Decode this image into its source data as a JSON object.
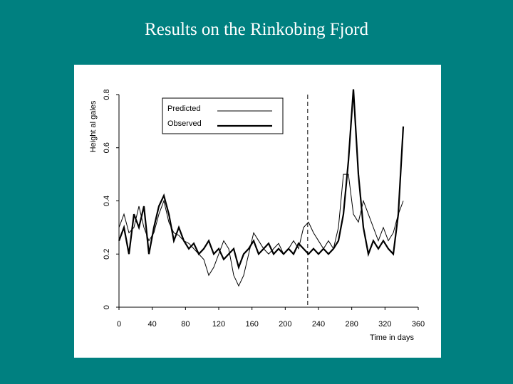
{
  "chart_data": {
    "type": "line",
    "title": "Results on the Rinkobing Fjord",
    "x_label": "Time in days",
    "y_label": "Height al gales",
    "x": [
      0,
      6,
      12,
      18,
      24,
      30,
      36,
      42,
      48,
      54,
      60,
      66,
      72,
      78,
      84,
      90,
      96,
      102,
      108,
      114,
      120,
      126,
      132,
      138,
      144,
      150,
      156,
      162,
      168,
      174,
      180,
      186,
      192,
      198,
      204,
      210,
      216,
      222,
      228,
      234,
      240,
      246,
      252,
      258,
      264,
      270,
      276,
      282,
      288,
      294,
      300,
      306,
      312,
      318,
      324,
      330,
      336,
      342
    ],
    "series": [
      {
        "name": "Predicted",
        "color": "#000000",
        "values": [
          0.3,
          0.35,
          0.28,
          0.3,
          0.38,
          0.3,
          0.25,
          0.28,
          0.35,
          0.4,
          0.32,
          0.28,
          0.27,
          0.25,
          0.24,
          0.22,
          0.2,
          0.18,
          0.12,
          0.15,
          0.2,
          0.25,
          0.22,
          0.12,
          0.08,
          0.12,
          0.2,
          0.28,
          0.25,
          0.22,
          0.2,
          0.22,
          0.24,
          0.2,
          0.22,
          0.25,
          0.22,
          0.3,
          0.32,
          0.28,
          0.25,
          0.22,
          0.25,
          0.22,
          0.3,
          0.5,
          0.5,
          0.35,
          0.32,
          0.4,
          0.35,
          0.3,
          0.25,
          0.3,
          0.25,
          0.28,
          0.35,
          0.4
        ]
      },
      {
        "name": "Observed",
        "color": "#000000",
        "values": [
          0.25,
          0.3,
          0.2,
          0.35,
          0.3,
          0.38,
          0.2,
          0.3,
          0.38,
          0.42,
          0.35,
          0.25,
          0.3,
          0.25,
          0.22,
          0.24,
          0.2,
          0.22,
          0.25,
          0.2,
          0.22,
          0.18,
          0.2,
          0.22,
          0.15,
          0.2,
          0.22,
          0.25,
          0.2,
          0.22,
          0.24,
          0.2,
          0.22,
          0.2,
          0.22,
          0.2,
          0.24,
          0.22,
          0.2,
          0.22,
          0.2,
          0.22,
          0.2,
          0.22,
          0.25,
          0.35,
          0.55,
          0.82,
          0.5,
          0.3,
          0.2,
          0.25,
          0.22,
          0.25,
          0.22,
          0.2,
          0.35,
          0.68
        ]
      }
    ],
    "vline": 227,
    "xlim": [
      0,
      360
    ],
    "xticks": [
      0,
      40,
      80,
      120,
      160,
      200,
      240,
      280,
      320,
      360
    ],
    "ylim": [
      0,
      0.8
    ],
    "yticks": [
      0,
      0.2,
      0.4,
      0.6,
      0.8
    ]
  }
}
